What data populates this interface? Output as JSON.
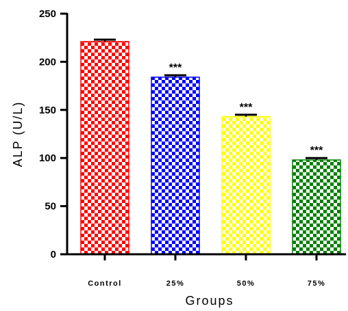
{
  "chart_data": {
    "type": "bar",
    "title": "",
    "xlabel": "Groups",
    "ylabel": "ALP (U/L)",
    "ylim": [
      0,
      250
    ],
    "yticks": [
      0,
      50,
      100,
      150,
      200,
      250
    ],
    "categories": [
      "Control",
      "25%",
      "50%",
      "75%"
    ],
    "values": [
      221,
      184,
      143,
      98
    ],
    "errors": [
      2,
      2,
      2,
      2
    ],
    "significance": [
      "",
      "***",
      "***",
      "***"
    ],
    "colors": [
      "#ff0000",
      "#0000ff",
      "#ffff00",
      "#008000"
    ],
    "pattern": "checkerboard",
    "grid": false
  }
}
